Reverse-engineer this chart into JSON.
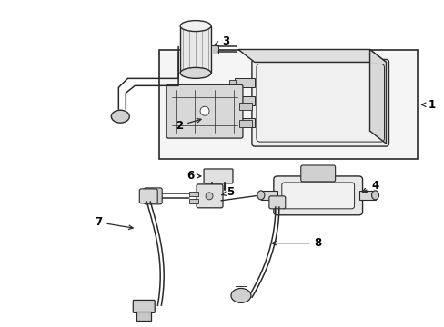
{
  "background_color": "#ffffff",
  "line_color": "#2a2a2a",
  "label_color": "#000000",
  "figsize": [
    4.89,
    3.6
  ],
  "dpi": 100,
  "box_bg": "#e8e8e8",
  "canister_bg": "#f0f0f0"
}
